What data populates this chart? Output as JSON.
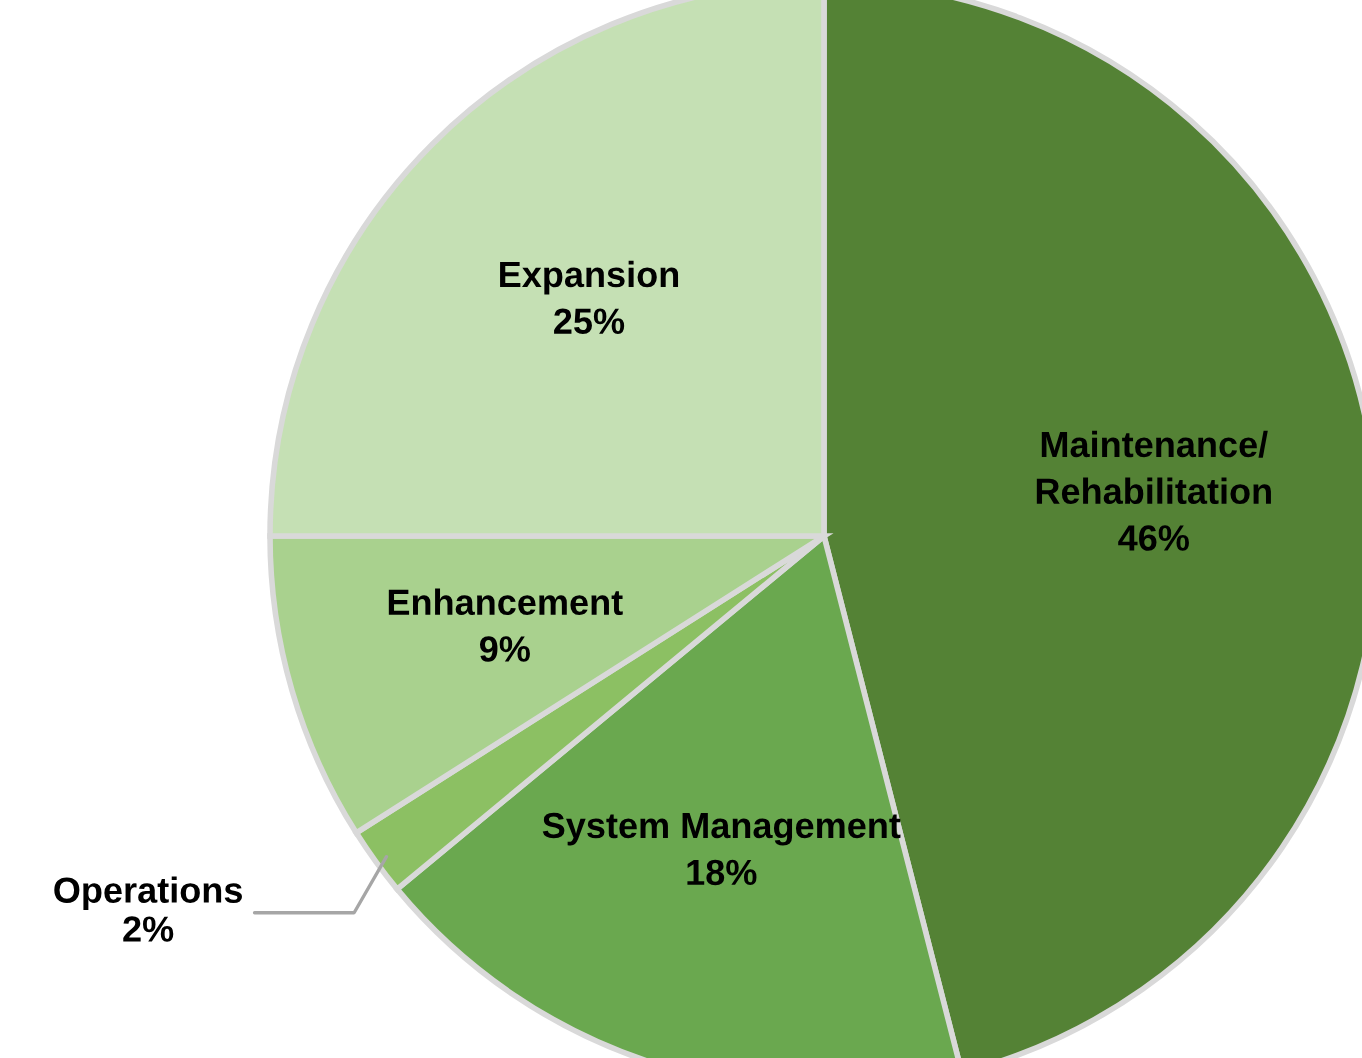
{
  "chart_data": {
    "type": "pie",
    "categories": [
      "Maintenance/\nRehabilitation",
      "System Management",
      "Operations",
      "Enhancement",
      "Expansion"
    ],
    "values": [
      46,
      18,
      2,
      9,
      25
    ],
    "value_labels": [
      "46%",
      "18%",
      "2%",
      "9%",
      "25%"
    ],
    "colors": [
      "#548235",
      "#6aa84f",
      "#8cc063",
      "#a9d18e",
      "#c5e0b4"
    ],
    "legend": false
  }
}
